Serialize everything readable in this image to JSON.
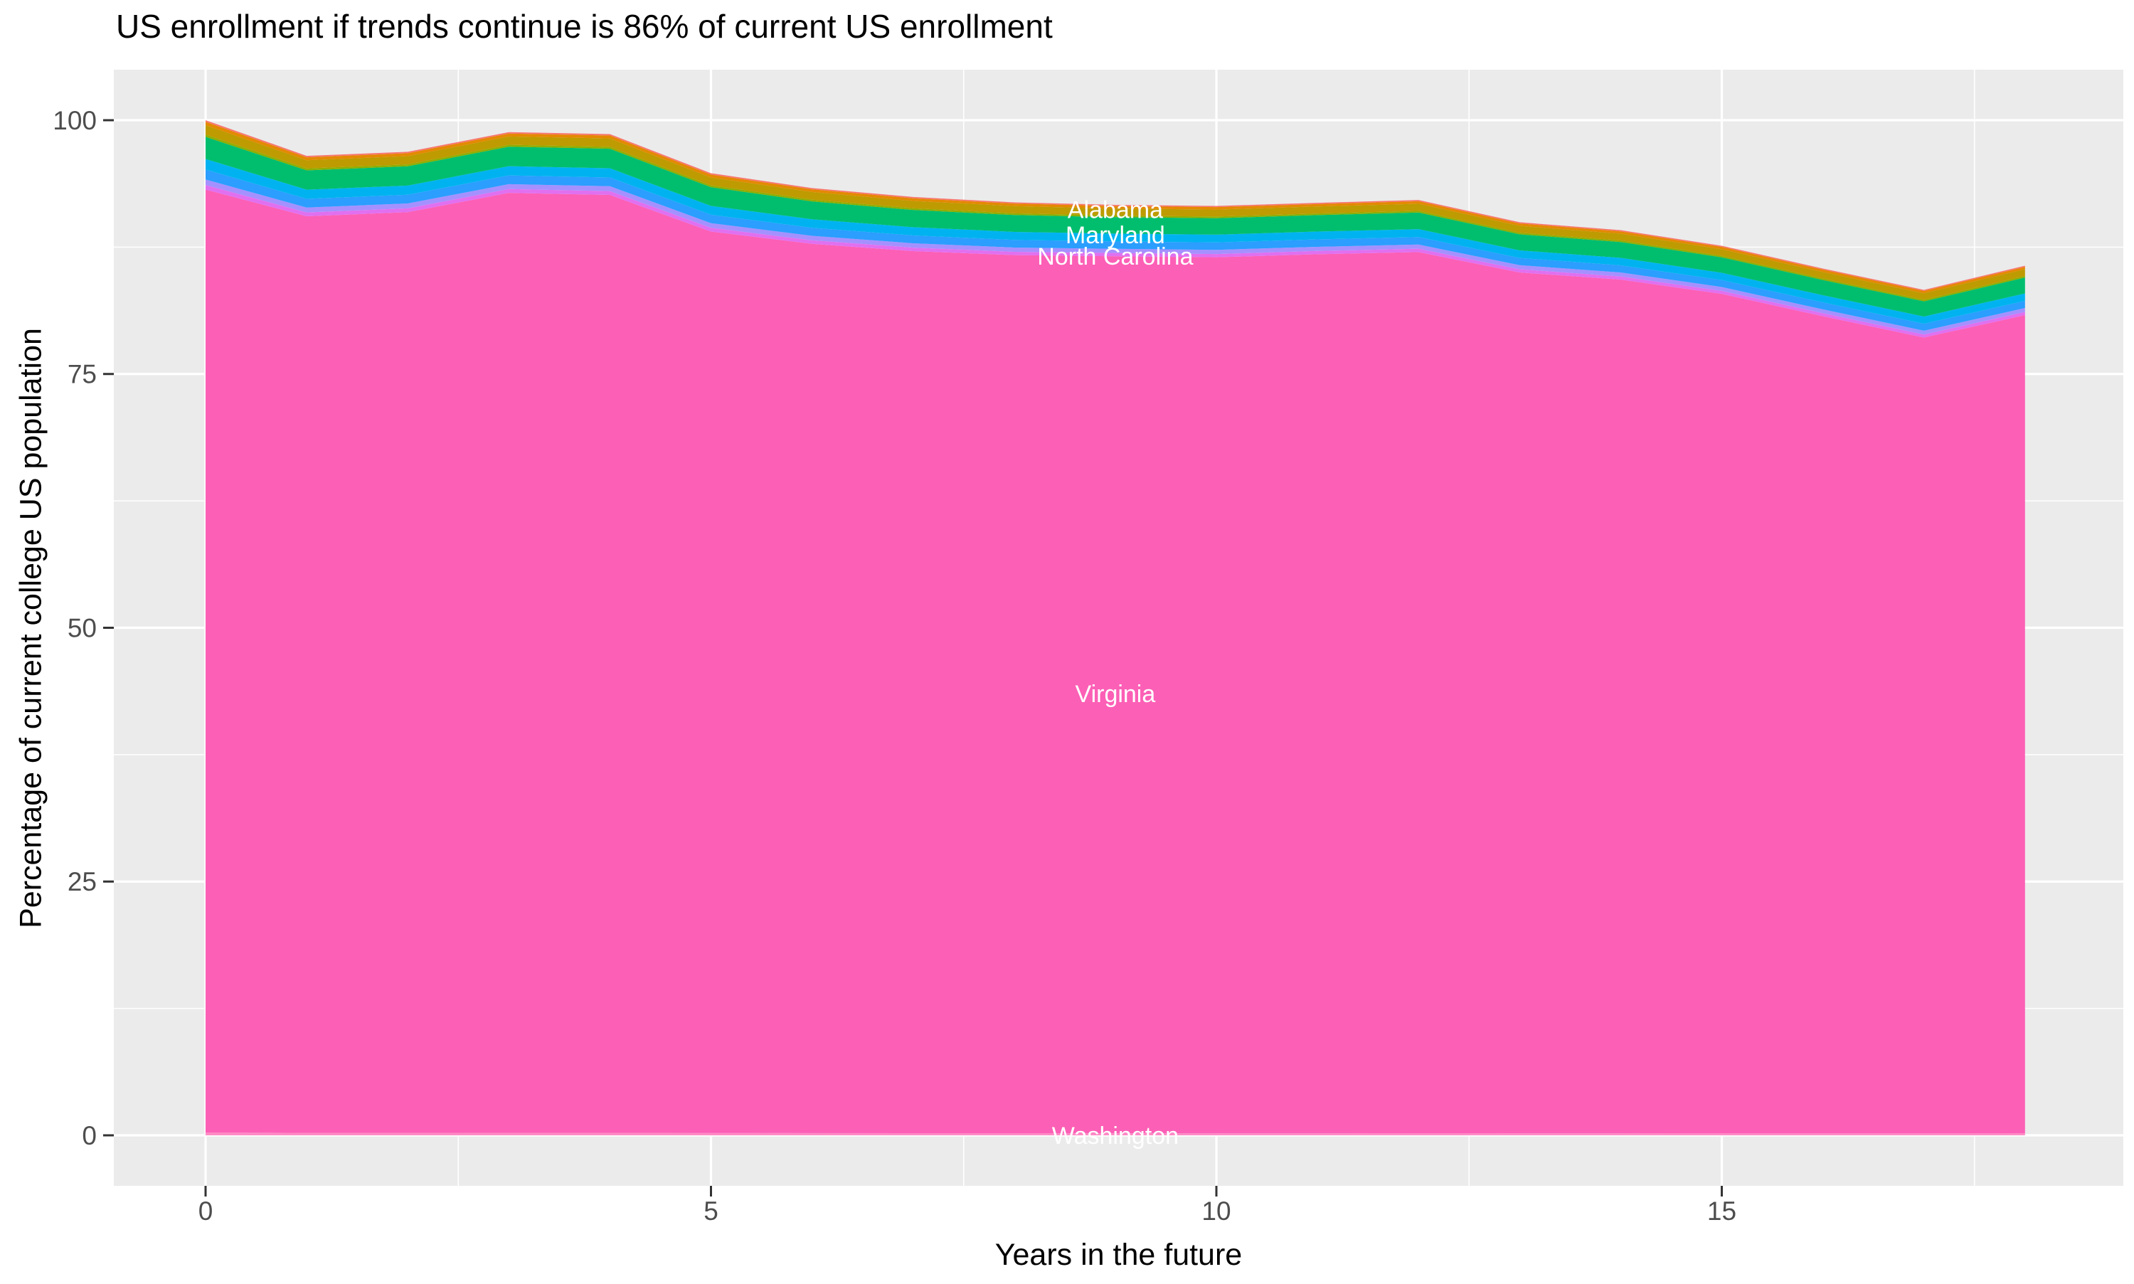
{
  "title": "US enrollment if trends continue is 86% of current US enrollment",
  "chart_data": {
    "type": "area",
    "stacked": true,
    "title": "US enrollment if trends continue is 86% of current US enrollment",
    "xlabel": "Years in the future",
    "ylabel": "Percentage of current college US population",
    "x": [
      0,
      1,
      2,
      3,
      4,
      5,
      6,
      7,
      8,
      9,
      10,
      11,
      12,
      13,
      14,
      15,
      16,
      17,
      18
    ],
    "xticks": [
      0,
      5,
      10,
      15
    ],
    "yticks": [
      0,
      25,
      50,
      75,
      100
    ],
    "xminor": [
      2.5,
      7.5,
      12.5,
      17.5
    ],
    "yminor": [
      12.5,
      37.5,
      62.5,
      87.5
    ],
    "xlim": [
      0,
      18
    ],
    "ylim": [
      0,
      100
    ],
    "grid": true,
    "legend_position": "none",
    "total_stack_top": [
      100,
      96.5,
      96.9,
      98.8,
      98.6,
      94.8,
      93.3,
      92.4,
      91.9,
      91.7,
      91.6,
      91.9,
      92.1,
      89.9,
      89.2,
      87.6,
      85.4,
      83.3,
      85.7
    ],
    "final_value_pct": 86,
    "series_order": "top-to-bottom",
    "series": [
      {
        "label": "Alabama",
        "labeled": true,
        "color": "#F8766D",
        "values": [
          0.16,
          0.14,
          0.14,
          0.14,
          0.14,
          0.14,
          0.13,
          0.13,
          0.12,
          0.12,
          0.12,
          0.12,
          0.12,
          0.12,
          0.12,
          0.11,
          0.11,
          0.11,
          0.12
        ]
      },
      {
        "label": null,
        "id": "unlabeled-band-orange",
        "color": "#E38900",
        "values": [
          0.33,
          0.29,
          0.29,
          0.29,
          0.29,
          0.28,
          0.26,
          0.26,
          0.25,
          0.24,
          0.24,
          0.24,
          0.25,
          0.24,
          0.23,
          0.23,
          0.23,
          0.23,
          0.23
        ]
      },
      {
        "label": null,
        "id": "unlabeled-band-olive",
        "color": "#BE9B00",
        "values": [
          0.93,
          0.81,
          0.81,
          0.82,
          0.82,
          0.78,
          0.75,
          0.72,
          0.71,
          0.69,
          0.69,
          0.69,
          0.7,
          0.67,
          0.66,
          0.65,
          0.64,
          0.64,
          0.66
        ]
      },
      {
        "label": null,
        "id": "unlabeled-band-yellowgreen",
        "color": "#8FAD00",
        "values": [
          0.22,
          0.19,
          0.19,
          0.19,
          0.19,
          0.18,
          0.18,
          0.17,
          0.17,
          0.16,
          0.16,
          0.16,
          0.16,
          0.16,
          0.16,
          0.15,
          0.15,
          0.15,
          0.16
        ]
      },
      {
        "label": "Maryland",
        "labeled": true,
        "color": "#00BE6E",
        "values": [
          2.18,
          1.9,
          1.9,
          1.92,
          1.92,
          1.84,
          1.76,
          1.7,
          1.66,
          1.62,
          1.62,
          1.62,
          1.64,
          1.58,
          1.56,
          1.52,
          1.5,
          1.5,
          1.56
        ]
      },
      {
        "label": null,
        "id": "unlabeled-band-cyan",
        "color": "#00B3F0",
        "values": [
          1.04,
          0.9,
          0.9,
          0.91,
          0.91,
          0.87,
          0.84,
          0.81,
          0.79,
          0.77,
          0.77,
          0.77,
          0.78,
          0.75,
          0.74,
          0.72,
          0.71,
          0.71,
          0.74
        ]
      },
      {
        "label": "North Carolina",
        "labeled": true,
        "color": "#2B9EFF",
        "values": [
          0.98,
          0.86,
          0.86,
          0.86,
          0.86,
          0.83,
          0.79,
          0.77,
          0.75,
          0.73,
          0.73,
          0.73,
          0.74,
          0.71,
          0.7,
          0.68,
          0.68,
          0.68,
          0.7
        ]
      },
      {
        "label": null,
        "id": "unlabeled-band-periwinkle",
        "color": "#A590FF",
        "values": [
          0.55,
          0.48,
          0.48,
          0.48,
          0.48,
          0.46,
          0.44,
          0.43,
          0.42,
          0.41,
          0.41,
          0.41,
          0.41,
          0.4,
          0.39,
          0.38,
          0.38,
          0.38,
          0.39
        ]
      },
      {
        "label": null,
        "id": "unlabeled-band-orchid",
        "color": "#E170F0",
        "values": [
          0.44,
          0.38,
          0.38,
          0.38,
          0.38,
          0.37,
          0.35,
          0.34,
          0.33,
          0.32,
          0.32,
          0.32,
          0.33,
          0.32,
          0.31,
          0.3,
          0.3,
          0.3,
          0.31
        ]
      },
      {
        "label": "Virginia",
        "labeled": true,
        "color": "#FC5FB6",
        "values": [
          92.9,
          90.3,
          90.7,
          92.6,
          92.4,
          88.8,
          87.6,
          86.9,
          86.5,
          86.4,
          86.3,
          86.6,
          86.8,
          84.8,
          84.1,
          82.7,
          80.5,
          78.4,
          80.6
        ]
      },
      {
        "label": "Washington",
        "labeled": true,
        "color": "#FF8AC5",
        "values": [
          0.27,
          0.24,
          0.24,
          0.24,
          0.24,
          0.23,
          0.22,
          0.21,
          0.21,
          0.2,
          0.2,
          0.2,
          0.21,
          0.2,
          0.2,
          0.19,
          0.19,
          0.19,
          0.2
        ]
      }
    ],
    "annotations": [
      {
        "text": "Alabama",
        "x": 9.0,
        "y": 91.2,
        "color": "#FFFFFF"
      },
      {
        "text": "Maryland",
        "x": 9.0,
        "y": 88.7,
        "color": "#FFFFFF"
      },
      {
        "text": "North Carolina",
        "x": 9.0,
        "y": 86.6,
        "color": "#FFFFFF"
      },
      {
        "text": "Virginia",
        "x": 9.0,
        "y": 43.5,
        "color": "#FFFFFF"
      },
      {
        "text": "Washington",
        "x": 9.0,
        "y": 0.0,
        "color": "#FFFFFF"
      }
    ],
    "colors": {
      "panel_bg": "#EBEBEB",
      "grid": "#FFFFFF",
      "tick_text": "#4D4D4D",
      "tick_mark": "#333333",
      "axis_title": "#000000",
      "title_text": "#000000",
      "page_bg": "#FFFFFF"
    }
  }
}
